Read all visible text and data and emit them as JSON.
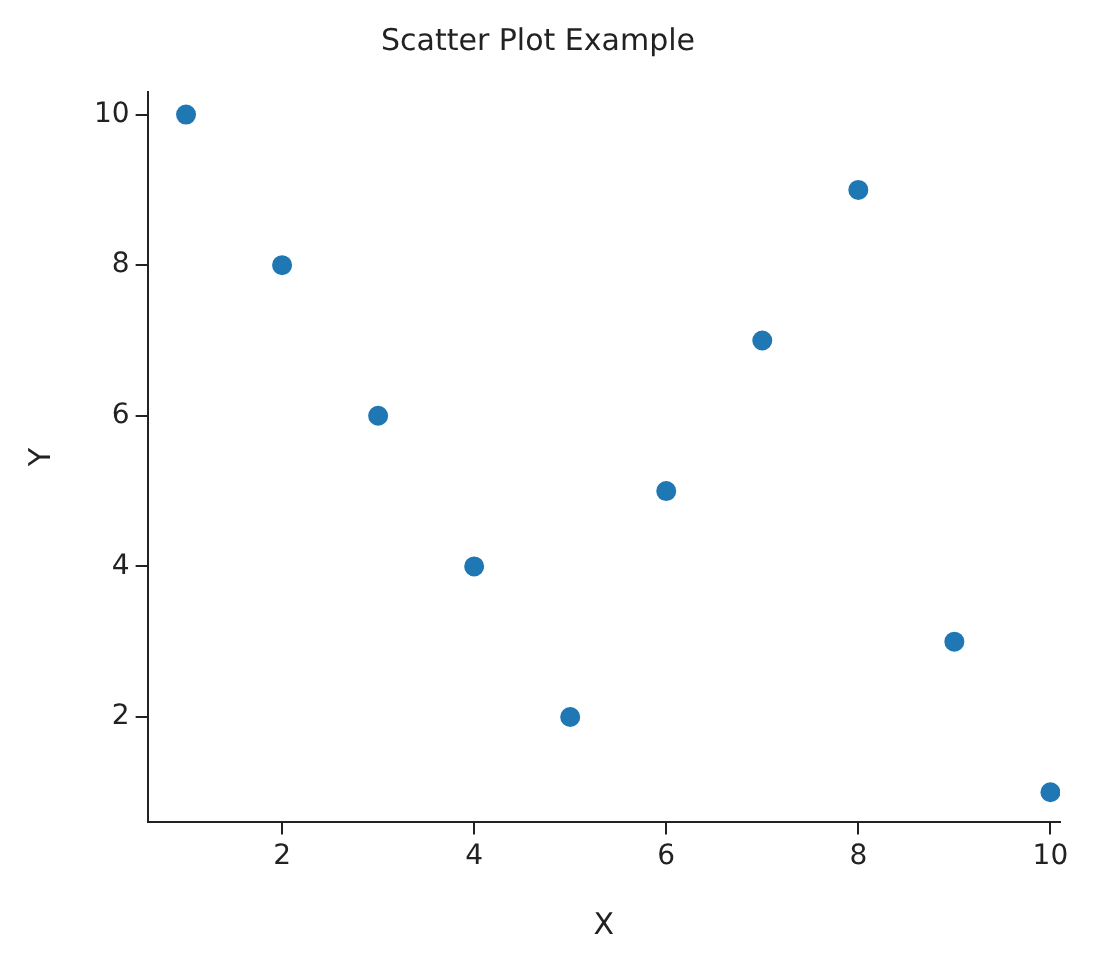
{
  "chart_data": {
    "type": "scatter",
    "title": "Scatter Plot Example",
    "xlabel": "X",
    "ylabel": "Y",
    "x": [
      1,
      2,
      3,
      4,
      5,
      6,
      7,
      8,
      9,
      10
    ],
    "series": [
      {
        "color": "#1f77b4",
        "values": [
          10,
          8,
          6,
          4,
          2,
          5,
          7,
          9,
          3,
          1
        ]
      }
    ],
    "xlim": [
      0.6,
      10.1
    ],
    "ylim": [
      0.6,
      10.3
    ],
    "xticks": [
      2,
      4,
      6,
      8,
      10
    ],
    "yticks": [
      2,
      4,
      6,
      8,
      10
    ],
    "grid": false,
    "legend": false,
    "marker": "circle"
  }
}
